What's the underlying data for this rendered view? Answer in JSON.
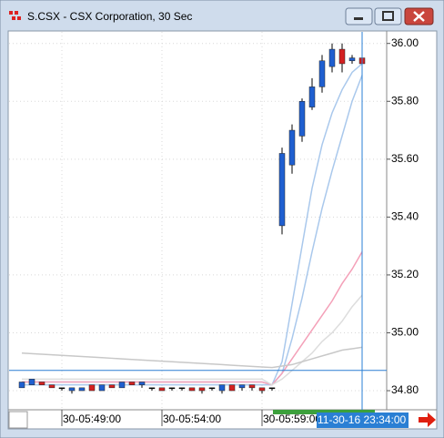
{
  "window_title": "S.CSX - CSX Corporation, 30 Sec",
  "chart_data": {
    "type": "candlestick",
    "categories": [
      null,
      null,
      null,
      null,
      "30-05:49:00",
      null,
      null,
      null,
      null,
      null,
      null,
      null,
      null,
      null,
      "30-05:54:00",
      null,
      null,
      null,
      null,
      null,
      null,
      null,
      null,
      null,
      "30-05:59:00",
      null,
      null,
      null,
      null,
      null,
      null,
      null,
      null,
      null,
      null
    ],
    "open": [
      34.81,
      34.82,
      34.83,
      34.82,
      34.81,
      34.8,
      34.8,
      34.82,
      34.8,
      34.82,
      34.81,
      34.83,
      34.82,
      34.81,
      34.81,
      34.81,
      34.81,
      34.81,
      34.81,
      34.81,
      34.8,
      34.82,
      34.81,
      34.82,
      34.81,
      34.81,
      35.37,
      35.58,
      35.68,
      35.78,
      35.85,
      35.92,
      35.98,
      35.94,
      35.95
    ],
    "high": [
      34.83,
      34.84,
      34.83,
      34.82,
      34.81,
      34.81,
      34.81,
      34.82,
      34.82,
      34.82,
      34.83,
      34.83,
      34.83,
      34.81,
      34.81,
      34.81,
      34.81,
      34.81,
      34.81,
      34.81,
      34.82,
      34.82,
      34.82,
      34.82,
      34.81,
      34.81,
      35.64,
      35.72,
      35.81,
      35.88,
      35.96,
      36.0,
      36.0,
      35.96,
      35.96
    ],
    "low": [
      34.81,
      34.82,
      34.82,
      34.81,
      34.8,
      34.79,
      34.8,
      34.8,
      34.8,
      34.81,
      34.81,
      34.82,
      34.81,
      34.8,
      34.8,
      34.8,
      34.8,
      34.8,
      34.79,
      34.8,
      34.79,
      34.8,
      34.8,
      34.8,
      34.79,
      34.8,
      35.34,
      35.55,
      35.66,
      35.77,
      35.83,
      35.9,
      35.9,
      35.93,
      35.92
    ],
    "close": [
      34.83,
      34.84,
      34.82,
      34.81,
      34.81,
      34.81,
      34.81,
      34.8,
      34.82,
      34.81,
      34.83,
      34.82,
      34.83,
      34.81,
      34.8,
      34.81,
      34.81,
      34.8,
      34.8,
      34.81,
      34.82,
      34.8,
      34.82,
      34.81,
      34.8,
      34.81,
      35.62,
      35.7,
      35.8,
      35.85,
      35.94,
      35.98,
      35.93,
      35.95,
      35.93
    ],
    "up_color": "#1f5fd0",
    "down_color": "#d42020",
    "overlays": [
      {
        "color": "#a9c8ec",
        "values": [
          34.82,
          34.82,
          34.82,
          34.82,
          34.82,
          34.82,
          34.82,
          34.82,
          34.82,
          34.82,
          34.82,
          34.82,
          34.82,
          34.82,
          34.82,
          34.82,
          34.82,
          34.82,
          34.82,
          34.82,
          34.82,
          34.82,
          34.82,
          34.82,
          34.82,
          34.82,
          34.9,
          35.1,
          35.3,
          35.5,
          35.65,
          35.76,
          35.84,
          35.9,
          35.93
        ]
      },
      {
        "color": "#a9c8ec",
        "values": [
          34.83,
          34.83,
          34.83,
          34.83,
          34.83,
          34.83,
          34.83,
          34.83,
          34.83,
          34.83,
          34.83,
          34.83,
          34.83,
          34.83,
          34.83,
          34.83,
          34.83,
          34.83,
          34.83,
          34.83,
          34.83,
          34.83,
          34.83,
          34.83,
          34.83,
          34.82,
          34.86,
          34.98,
          35.12,
          35.28,
          35.43,
          35.56,
          35.68,
          35.8,
          35.89
        ]
      },
      {
        "color": "#f4a0b8",
        "values": [
          34.83,
          34.83,
          34.83,
          34.83,
          34.83,
          34.83,
          34.83,
          34.83,
          34.83,
          34.83,
          34.83,
          34.83,
          34.83,
          34.83,
          34.83,
          34.83,
          34.83,
          34.83,
          34.83,
          34.83,
          34.83,
          34.83,
          34.83,
          34.83,
          34.83,
          34.82,
          34.86,
          34.91,
          34.96,
          35.01,
          35.06,
          35.11,
          35.17,
          35.22,
          35.28
        ]
      },
      {
        "color": "#dddddd",
        "values": [
          34.84,
          34.84,
          34.84,
          34.84,
          34.84,
          34.84,
          34.84,
          34.84,
          34.84,
          34.84,
          34.84,
          34.84,
          34.84,
          34.84,
          34.84,
          34.84,
          34.84,
          34.84,
          34.84,
          34.84,
          34.84,
          34.84,
          34.84,
          34.84,
          34.84,
          34.82,
          34.84,
          34.87,
          34.9,
          34.93,
          34.97,
          35.0,
          35.04,
          35.09,
          35.13
        ]
      },
      {
        "color": "#c8c8c8",
        "values": [
          34.93,
          34.928,
          34.926,
          34.924,
          34.922,
          34.92,
          34.918,
          34.916,
          34.914,
          34.912,
          34.91,
          34.908,
          34.906,
          34.904,
          34.902,
          34.9,
          34.898,
          34.896,
          34.894,
          34.892,
          34.89,
          34.888,
          34.886,
          34.884,
          34.882,
          34.88,
          34.885,
          34.89,
          34.9,
          34.91,
          34.92,
          34.93,
          34.94,
          34.945,
          34.95
        ]
      }
    ],
    "price_line": 34.87,
    "crosshair_label": "11-30-16 23:34:00",
    "ylim": [
      34.734,
      36.04
    ],
    "yticks": [
      {
        "value": 34.8,
        "label": "34.80"
      },
      {
        "value": 35.0,
        "label": "35.00"
      },
      {
        "value": 35.2,
        "label": "35.20"
      },
      {
        "value": 35.4,
        "label": "35.40"
      },
      {
        "value": 35.6,
        "label": "35.60"
      },
      {
        "value": 35.8,
        "label": "35.80"
      },
      {
        "value": 36.0,
        "label": "36.00"
      }
    ],
    "grid": true
  }
}
